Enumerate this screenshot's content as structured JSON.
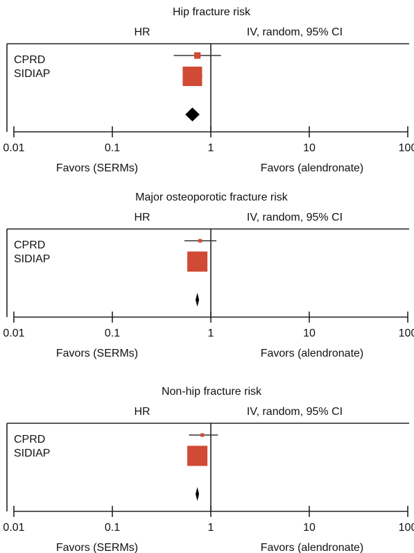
{
  "chart_data": [
    {
      "type": "forest",
      "title": "Hip fracture risk",
      "header_left": "HR",
      "header_right": "IV, random, 95% CI",
      "studies": [
        {
          "name": "CPRD",
          "value": 0.73,
          "ci": [
            0.42,
            1.27
          ],
          "weight": 10
        },
        {
          "name": "SIDIAP",
          "value": 0.65,
          "ci": [
            0.55,
            0.82
          ],
          "weight": 90
        }
      ],
      "pooled": {
        "value": 0.65,
        "ci": [
          0.55,
          0.77
        ]
      },
      "xlim": [
        0.01,
        100
      ],
      "xticks": [
        0.01,
        0.1,
        1,
        10,
        100
      ],
      "log_x": true,
      "favors_left": "Favors (SERMs)",
      "favors_right": "Favors (alendronate)",
      "color": "#d04a35"
    },
    {
      "type": "forest",
      "title": "Major osteoporotic fracture risk",
      "header_left": "HR",
      "header_right": "IV, random, 95% CI",
      "studies": [
        {
          "name": "CPRD",
          "value": 0.78,
          "ci": [
            0.54,
            1.14
          ],
          "weight": 3
        },
        {
          "name": "SIDIAP",
          "value": 0.73,
          "ci": [
            0.65,
            0.82
          ],
          "weight": 97
        }
      ],
      "pooled": {
        "value": 0.73,
        "ci": [
          0.7,
          0.76
        ]
      },
      "xlim": [
        0.01,
        100
      ],
      "xticks": [
        0.01,
        0.1,
        1,
        10,
        100
      ],
      "log_x": true,
      "favors_left": "Favors (SERMs)",
      "favors_right": "Favors (alendronate)",
      "color": "#d04a35"
    },
    {
      "type": "forest",
      "title": "Non-hip fracture risk",
      "header_left": "HR",
      "header_right": "IV, random, 95% CI",
      "studies": [
        {
          "name": "CPRD",
          "value": 0.82,
          "ci": [
            0.6,
            1.18
          ],
          "weight": 3
        },
        {
          "name": "SIDIAP",
          "value": 0.73,
          "ci": [
            0.65,
            0.82
          ],
          "weight": 97
        }
      ],
      "pooled": {
        "value": 0.73,
        "ci": [
          0.7,
          0.76
        ]
      },
      "xlim": [
        0.01,
        100
      ],
      "xticks": [
        0.01,
        0.1,
        1,
        10,
        100
      ],
      "log_x": true,
      "favors_left": "Favors (SERMs)",
      "favors_right": "Favors (alendronate)",
      "color": "#d04a35"
    }
  ]
}
